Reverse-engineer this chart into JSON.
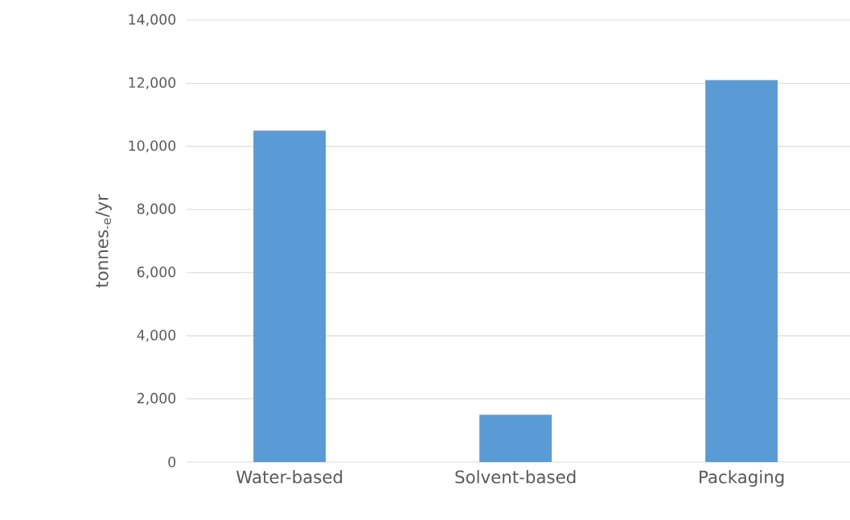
{
  "chart_data": {
    "type": "bar",
    "ylabel": "tonnes$_{-e}$/yr",
    "categories": [
      "Water-based",
      "Solvent-based",
      "Packaging"
    ],
    "values": [
      10500,
      1500,
      12100
    ],
    "color": "#5b9bd5",
    "ylim": [
      0,
      14000
    ],
    "yticks": [
      {
        "value": 0,
        "label": "0"
      },
      {
        "value": 2000,
        "label": "2,000"
      },
      {
        "value": 4000,
        "label": "4,000"
      },
      {
        "value": 6000,
        "label": "6,000"
      },
      {
        "value": 8000,
        "label": "8,000"
      },
      {
        "value": 10000,
        "label": "10,000"
      },
      {
        "value": 12000,
        "label": "12,000"
      },
      {
        "value": 14000,
        "label": "14,000"
      }
    ],
    "grid": "y"
  }
}
